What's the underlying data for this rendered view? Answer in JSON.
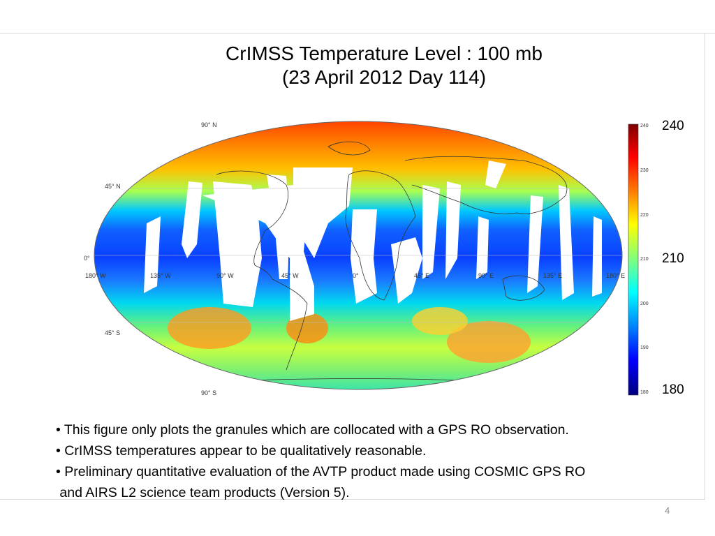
{
  "slide": {
    "title_line1": "CrIMSS Temperature Level : 100 mb",
    "title_line2": "(23 April 2012 Day 114)",
    "page_number": "4"
  },
  "map": {
    "lat_labels": [
      "90° N",
      "45° N",
      "0°",
      "45° S",
      "90° S"
    ],
    "lon_labels": [
      "180° W",
      "135° W",
      "90° W",
      "45° W",
      "0°",
      "45° E",
      "90° E",
      "135° E",
      "180° E"
    ],
    "colorbar": {
      "min_label": "180",
      "mid_label": "210",
      "max_label": "240",
      "tick_labels": [
        "240",
        "230",
        "220",
        "210",
        "200",
        "190",
        "180"
      ],
      "colors": [
        "#7f0000",
        "#ff0000",
        "#ff7f00",
        "#ffff00",
        "#7fff7f",
        "#00ffff",
        "#007fff",
        "#0000ff",
        "#00007f"
      ]
    }
  },
  "bullets": [
    "• This figure only plots the granules which are collocated with a GPS RO observation.",
    "• CrIMSS temperatures appear to be qualitatively reasonable.",
    "• Preliminary quantitative evaluation of the AVTP product made using COSMIC GPS RO",
    " and AIRS L2 science team products (Version 5)."
  ]
}
